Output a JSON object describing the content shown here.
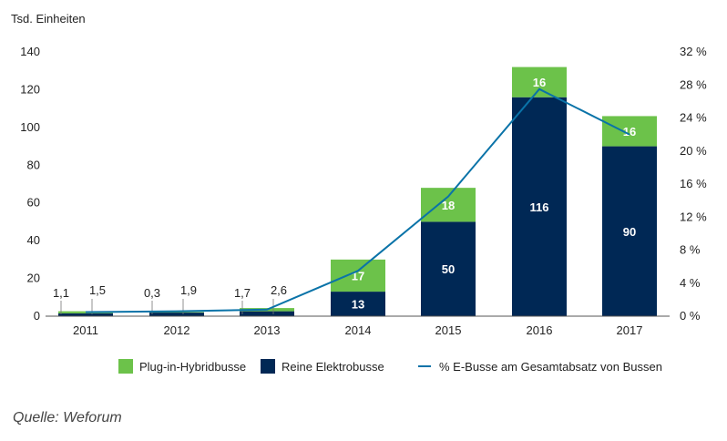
{
  "chart_data": {
    "type": "bar",
    "stacked": true,
    "y_unit_label": "Tsd. Einheiten",
    "categories": [
      "2011",
      "2012",
      "2013",
      "2014",
      "2015",
      "2016",
      "2017"
    ],
    "ylim": [
      0,
      140
    ],
    "y_ticks": [
      0,
      20,
      40,
      60,
      80,
      100,
      120,
      140
    ],
    "y2lim": [
      0,
      32
    ],
    "y2_ticks": [
      "0 %",
      "4 %",
      "8 %",
      "12 %",
      "16 %",
      "20 %",
      "24 %",
      "28 %",
      "32 %"
    ],
    "grid": false,
    "series": [
      {
        "name": "Reine Elektrobusse",
        "color": "#002855",
        "values": [
          1.5,
          1.9,
          2.6,
          13,
          50,
          116,
          90
        ],
        "labels": [
          "1,5",
          "1,9",
          "2,6",
          "13",
          "50",
          "116",
          "90"
        ]
      },
      {
        "name": "Plug-in-Hybridbusse",
        "color": "#6cc24a",
        "values": [
          1.1,
          0.3,
          1.7,
          17,
          18,
          16,
          16
        ],
        "labels": [
          "1,1",
          "0,3",
          "1,7",
          "17",
          "18",
          "16",
          "16"
        ]
      }
    ],
    "line_series": {
      "name": "% E-Busse am Gesamtabsatz von Bussen",
      "color": "#0a73a8",
      "axis": "right",
      "values": [
        0.5,
        0.6,
        0.8,
        5.5,
        14.5,
        27.5,
        22
      ]
    },
    "legend_position": "bottom",
    "legend": [
      {
        "label": "Plug-in-Hybridbusse",
        "kind": "swatch",
        "color": "#6cc24a"
      },
      {
        "label": "Reine Elektrobusse",
        "kind": "swatch",
        "color": "#002855"
      },
      {
        "label": "% E-Busse am Gesamtabsatz von Bussen",
        "kind": "line",
        "color": "#0a73a8"
      }
    ]
  },
  "source": "Quelle: Weforum"
}
